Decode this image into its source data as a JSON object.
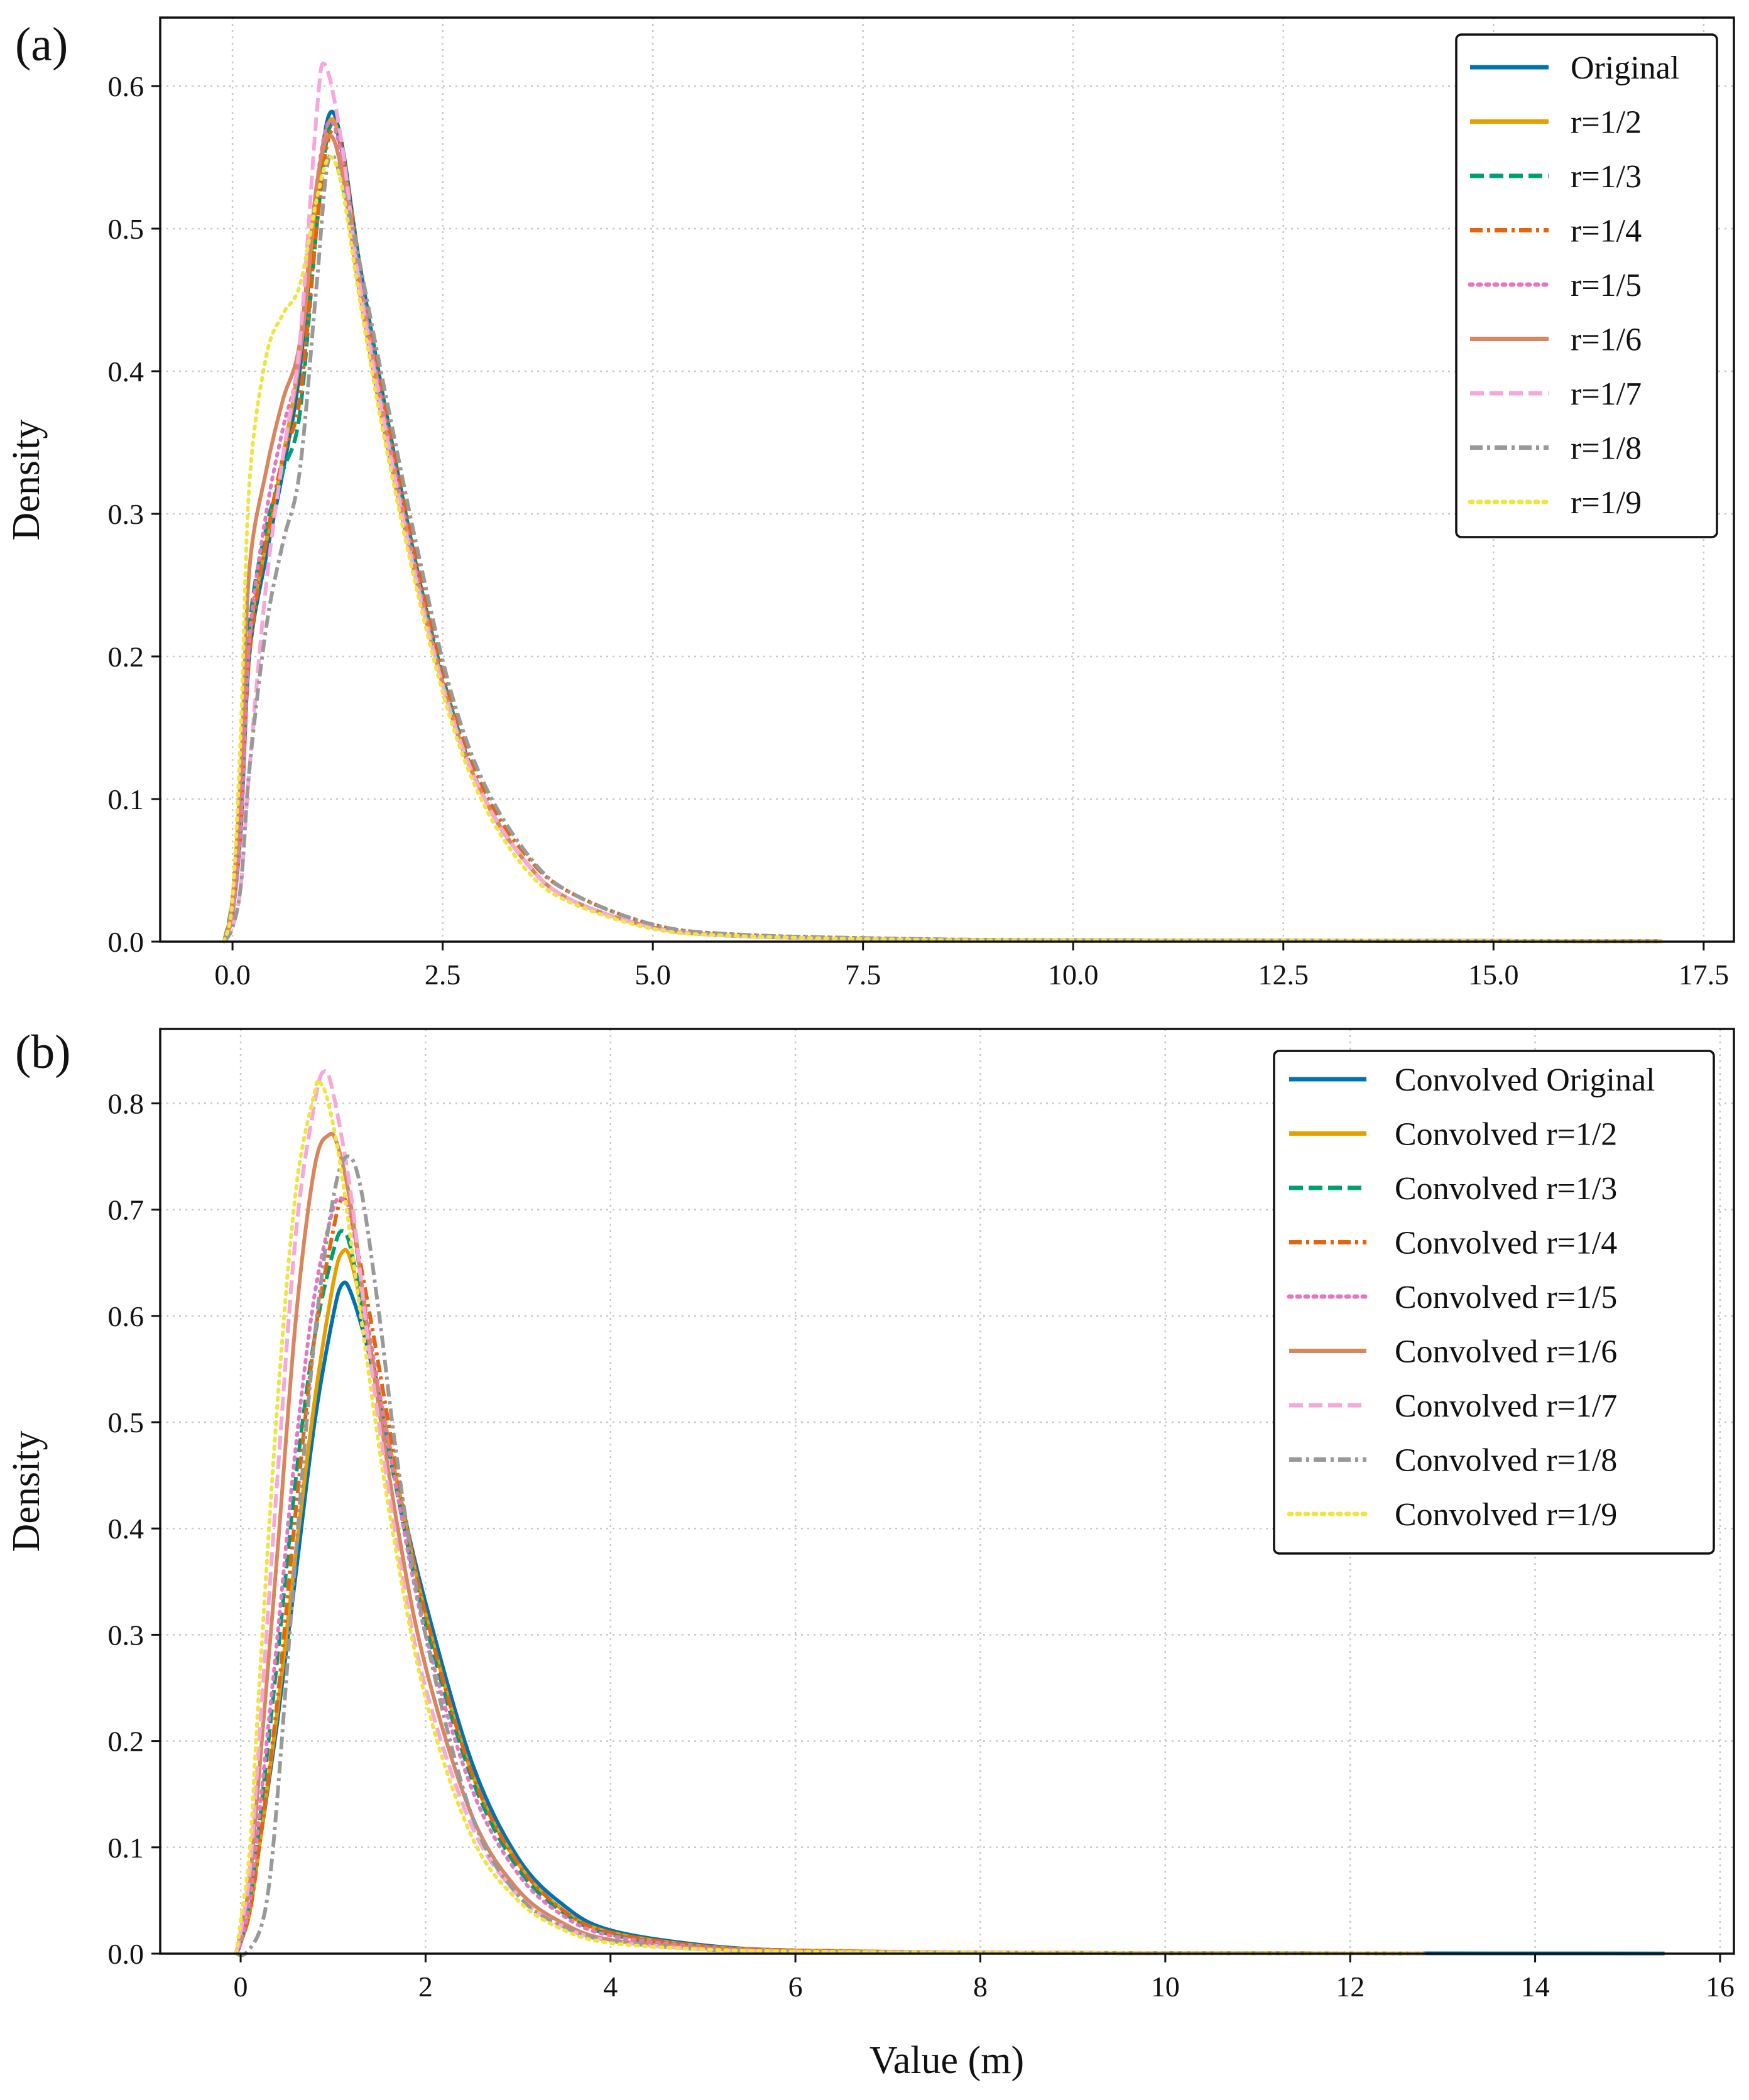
{
  "chart_data": [
    {
      "type": "line",
      "panel_label": "(a)",
      "xlabel": "",
      "ylabel": "Density",
      "xlim": [
        -0.86,
        17.86
      ],
      "ylim": [
        0,
        0.648
      ],
      "xticks": [
        0.0,
        2.5,
        5.0,
        7.5,
        10.0,
        12.5,
        15.0,
        17.5
      ],
      "xtick_labels": [
        "0.0",
        "2.5",
        "5.0",
        "7.5",
        "10.0",
        "12.5",
        "15.0",
        "17.5"
      ],
      "yticks": [
        0.0,
        0.1,
        0.2,
        0.3,
        0.4,
        0.5,
        0.6
      ],
      "ytick_labels": [
        "0.0",
        "0.1",
        "0.2",
        "0.3",
        "0.4",
        "0.5",
        "0.6"
      ],
      "grid": true,
      "legend_position": "top-right",
      "series": [
        {
          "name": "Original",
          "color": "#0072B2",
          "style": "solid",
          "x": [
            -0.1,
            0.0,
            0.1,
            0.2,
            0.4,
            0.6,
            0.8,
            1.0,
            1.15,
            1.3,
            1.5,
            1.8,
            2.2,
            2.6,
            3.0,
            3.5,
            4.0,
            5.0,
            6.0,
            8.0,
            10.0,
            15.0,
            17.0
          ],
          "y": [
            0.0,
            0.02,
            0.08,
            0.2,
            0.27,
            0.33,
            0.4,
            0.52,
            0.58,
            0.56,
            0.48,
            0.38,
            0.26,
            0.16,
            0.1,
            0.055,
            0.03,
            0.01,
            0.004,
            0.0015,
            0.001,
            0.0005,
            0.0003
          ]
        },
        {
          "name": "r=1/2",
          "color": "#E69F00",
          "style": "solid",
          "x": [
            -0.1,
            0.0,
            0.1,
            0.2,
            0.4,
            0.6,
            0.8,
            1.0,
            1.15,
            1.3,
            1.5,
            1.8,
            2.2,
            2.6,
            3.0,
            3.5,
            4.0,
            5.0,
            6.0,
            8.0,
            10.0,
            15.0,
            17.0
          ],
          "y": [
            0.0,
            0.02,
            0.09,
            0.21,
            0.28,
            0.34,
            0.41,
            0.52,
            0.575,
            0.555,
            0.47,
            0.37,
            0.255,
            0.16,
            0.1,
            0.055,
            0.03,
            0.01,
            0.004,
            0.0015,
            0.001,
            0.0005,
            0.0003
          ]
        },
        {
          "name": "r=1/3",
          "color": "#009E73",
          "style": "dashed",
          "x": [
            -0.1,
            0.0,
            0.1,
            0.2,
            0.4,
            0.6,
            0.8,
            1.0,
            1.15,
            1.3,
            1.5,
            1.8,
            2.2,
            2.6,
            3.0,
            3.5,
            4.0,
            5.0,
            6.0,
            8.0,
            10.0,
            15.0,
            17.0
          ],
          "y": [
            0.0,
            0.03,
            0.1,
            0.22,
            0.29,
            0.33,
            0.37,
            0.5,
            0.57,
            0.555,
            0.475,
            0.375,
            0.26,
            0.165,
            0.1,
            0.055,
            0.03,
            0.01,
            0.004,
            0.0015,
            0.001,
            0.0005,
            0.0003
          ]
        },
        {
          "name": "r=1/4",
          "color": "#E3650F",
          "style": "dashdot",
          "x": [
            -0.1,
            0.0,
            0.1,
            0.2,
            0.4,
            0.6,
            0.8,
            1.0,
            1.15,
            1.3,
            1.5,
            1.8,
            2.2,
            2.6,
            3.0,
            3.5,
            4.0,
            5.0,
            6.0,
            8.0,
            10.0,
            15.0,
            17.0
          ],
          "y": [
            0.0,
            0.02,
            0.08,
            0.2,
            0.28,
            0.34,
            0.38,
            0.5,
            0.565,
            0.555,
            0.48,
            0.38,
            0.265,
            0.17,
            0.105,
            0.06,
            0.035,
            0.012,
            0.005,
            0.002,
            0.001,
            0.0005,
            0.0003
          ]
        },
        {
          "name": "r=1/5",
          "color": "#E377C2",
          "style": "dotted",
          "x": [
            -0.1,
            0.0,
            0.1,
            0.2,
            0.4,
            0.6,
            0.8,
            1.0,
            1.15,
            1.3,
            1.5,
            1.8,
            2.2,
            2.6,
            3.0,
            3.5,
            4.0,
            5.0,
            6.0,
            8.0,
            10.0,
            15.0,
            17.0
          ],
          "y": [
            0.0,
            0.02,
            0.08,
            0.21,
            0.3,
            0.36,
            0.41,
            0.53,
            0.575,
            0.55,
            0.47,
            0.37,
            0.255,
            0.16,
            0.1,
            0.055,
            0.03,
            0.01,
            0.004,
            0.0015,
            0.001,
            0.0005,
            0.0003
          ]
        },
        {
          "name": "r=1/6",
          "color": "#D9865E",
          "style": "solid",
          "x": [
            -0.1,
            0.0,
            0.1,
            0.2,
            0.4,
            0.6,
            0.8,
            1.0,
            1.15,
            1.3,
            1.5,
            1.8,
            2.2,
            2.6,
            3.0,
            3.5,
            4.0,
            5.0,
            6.0,
            8.0,
            10.0,
            15.0,
            17.0
          ],
          "y": [
            0.0,
            0.03,
            0.12,
            0.26,
            0.33,
            0.38,
            0.42,
            0.53,
            0.565,
            0.54,
            0.46,
            0.36,
            0.25,
            0.16,
            0.1,
            0.055,
            0.03,
            0.01,
            0.004,
            0.0015,
            0.001,
            0.0005,
            0.0003
          ]
        },
        {
          "name": "r=1/7",
          "color": "#F7A8D8",
          "style": "dashed",
          "x": [
            -0.1,
            0.0,
            0.1,
            0.2,
            0.4,
            0.6,
            0.8,
            1.0,
            1.1,
            1.3,
            1.5,
            1.8,
            2.2,
            2.6,
            3.0,
            3.5,
            4.0,
            5.0,
            6.0,
            8.0,
            10.0,
            15.0,
            17.0
          ],
          "y": [
            0.0,
            0.01,
            0.04,
            0.12,
            0.25,
            0.34,
            0.42,
            0.58,
            0.615,
            0.56,
            0.465,
            0.365,
            0.25,
            0.16,
            0.1,
            0.055,
            0.03,
            0.01,
            0.004,
            0.0015,
            0.001,
            0.0005,
            0.0003
          ]
        },
        {
          "name": "r=1/8",
          "color": "#999999",
          "style": "dashdot",
          "x": [
            -0.1,
            0.0,
            0.1,
            0.2,
            0.4,
            0.6,
            0.8,
            1.0,
            1.15,
            1.35,
            1.5,
            1.8,
            2.2,
            2.6,
            3.0,
            3.5,
            4.0,
            5.0,
            6.0,
            8.0,
            10.0,
            15.0,
            17.0
          ],
          "y": [
            0.0,
            0.01,
            0.04,
            0.12,
            0.22,
            0.28,
            0.33,
            0.46,
            0.55,
            0.52,
            0.48,
            0.39,
            0.275,
            0.175,
            0.11,
            0.062,
            0.035,
            0.012,
            0.005,
            0.002,
            0.001,
            0.0005,
            0.0003
          ]
        },
        {
          "name": "r=1/9",
          "color": "#F0E442",
          "style": "dotted",
          "x": [
            -0.1,
            0.0,
            0.1,
            0.2,
            0.4,
            0.6,
            0.8,
            1.0,
            1.15,
            1.3,
            1.5,
            1.8,
            2.2,
            2.6,
            3.0,
            3.5,
            4.0,
            5.0,
            6.0,
            8.0,
            10.0,
            15.0,
            17.0
          ],
          "y": [
            0.0,
            0.03,
            0.15,
            0.32,
            0.41,
            0.44,
            0.46,
            0.52,
            0.55,
            0.53,
            0.455,
            0.355,
            0.245,
            0.155,
            0.095,
            0.05,
            0.028,
            0.009,
            0.004,
            0.0015,
            0.001,
            0.0005,
            0.0003
          ]
        }
      ]
    },
    {
      "type": "line",
      "panel_label": "(b)",
      "xlabel": "Value (m)",
      "ylabel": "Density",
      "xlim": [
        -0.87,
        16.15
      ],
      "ylim": [
        0,
        0.87
      ],
      "xticks": [
        0,
        2,
        4,
        6,
        8,
        10,
        12,
        14,
        16
      ],
      "xtick_labels": [
        "0",
        "2",
        "4",
        "6",
        "8",
        "10",
        "12",
        "14",
        "16"
      ],
      "yticks": [
        0.0,
        0.1,
        0.2,
        0.3,
        0.4,
        0.5,
        0.6,
        0.7,
        0.8
      ],
      "ytick_labels": [
        "0.0",
        "0.1",
        "0.2",
        "0.3",
        "0.4",
        "0.5",
        "0.6",
        "0.7",
        "0.8"
      ],
      "grid": true,
      "legend_position": "top-right",
      "series": [
        {
          "name": "Convolved Original",
          "color": "#0072B2",
          "style": "solid",
          "x": [
            -0.05,
            0.0,
            0.1,
            0.2,
            0.4,
            0.6,
            0.8,
            1.0,
            1.1,
            1.2,
            1.4,
            1.7,
            2.0,
            2.5,
            3.0,
            3.5,
            4.0,
            5.0,
            6.0,
            8.0,
            10.0,
            12.0,
            15.4
          ],
          "y": [
            0.0,
            0.01,
            0.04,
            0.1,
            0.22,
            0.36,
            0.5,
            0.6,
            0.63,
            0.62,
            0.56,
            0.44,
            0.33,
            0.18,
            0.09,
            0.045,
            0.022,
            0.008,
            0.003,
            0.001,
            0.0005,
            0.0003,
            0.0002
          ]
        },
        {
          "name": "Convolved r=1/2",
          "color": "#E69F00",
          "style": "solid",
          "x": [
            -0.05,
            0.0,
            0.1,
            0.2,
            0.4,
            0.6,
            0.8,
            1.0,
            1.1,
            1.2,
            1.4,
            1.7,
            2.0,
            2.5,
            3.0,
            3.5,
            4.0,
            5.0,
            6.0,
            8.0,
            10.0,
            12.0,
            12.8
          ],
          "y": [
            0.0,
            0.01,
            0.04,
            0.1,
            0.23,
            0.38,
            0.52,
            0.63,
            0.66,
            0.65,
            0.57,
            0.44,
            0.32,
            0.17,
            0.085,
            0.04,
            0.02,
            0.007,
            0.003,
            0.001,
            0.0005,
            0.0003,
            0.0002
          ]
        },
        {
          "name": "Convolved r=1/3",
          "color": "#009E73",
          "style": "dashed",
          "x": [
            -0.05,
            0.0,
            0.1,
            0.2,
            0.4,
            0.6,
            0.8,
            1.0,
            1.1,
            1.2,
            1.4,
            1.7,
            2.0,
            2.5,
            3.0,
            3.5,
            4.0,
            5.0,
            6.0,
            8.0,
            10.0,
            12.0,
            12.8
          ],
          "y": [
            0.0,
            0.01,
            0.05,
            0.12,
            0.28,
            0.45,
            0.58,
            0.66,
            0.68,
            0.66,
            0.57,
            0.43,
            0.31,
            0.165,
            0.08,
            0.038,
            0.018,
            0.006,
            0.002,
            0.001,
            0.0005,
            0.0003,
            0.0002
          ]
        },
        {
          "name": "Convolved r=1/4",
          "color": "#E3650F",
          "style": "dashdot",
          "x": [
            -0.05,
            0.0,
            0.1,
            0.2,
            0.4,
            0.6,
            0.8,
            1.0,
            1.1,
            1.2,
            1.4,
            1.7,
            2.0,
            2.5,
            3.0,
            3.5,
            4.0,
            5.0,
            6.0,
            8.0,
            10.0,
            12.0,
            12.8
          ],
          "y": [
            0.0,
            0.01,
            0.04,
            0.1,
            0.24,
            0.42,
            0.58,
            0.68,
            0.71,
            0.69,
            0.6,
            0.45,
            0.32,
            0.17,
            0.085,
            0.04,
            0.02,
            0.007,
            0.003,
            0.001,
            0.0005,
            0.0003,
            0.0002
          ]
        },
        {
          "name": "Convolved r=1/5",
          "color": "#E377C2",
          "style": "dotted",
          "x": [
            -0.05,
            0.0,
            0.1,
            0.2,
            0.4,
            0.6,
            0.8,
            1.0,
            1.1,
            1.2,
            1.4,
            1.7,
            2.0,
            2.5,
            3.0,
            3.5,
            4.0,
            5.0,
            6.0,
            8.0,
            10.0,
            12.0,
            12.8
          ],
          "y": [
            0.0,
            0.01,
            0.05,
            0.13,
            0.3,
            0.48,
            0.62,
            0.7,
            0.71,
            0.69,
            0.58,
            0.43,
            0.3,
            0.155,
            0.075,
            0.035,
            0.017,
            0.006,
            0.002,
            0.001,
            0.0005,
            0.0003,
            0.0002
          ]
        },
        {
          "name": "Convolved r=1/6",
          "color": "#D9865E",
          "style": "solid",
          "x": [
            -0.05,
            0.0,
            0.1,
            0.2,
            0.4,
            0.6,
            0.8,
            0.95,
            1.05,
            1.2,
            1.4,
            1.7,
            2.0,
            2.5,
            3.0,
            3.5,
            4.0,
            5.0,
            6.0,
            8.0,
            10.0,
            12.0,
            12.8
          ],
          "y": [
            0.0,
            0.02,
            0.07,
            0.17,
            0.38,
            0.6,
            0.74,
            0.77,
            0.76,
            0.7,
            0.57,
            0.4,
            0.27,
            0.13,
            0.06,
            0.028,
            0.013,
            0.005,
            0.002,
            0.001,
            0.0005,
            0.0003,
            0.0002
          ]
        },
        {
          "name": "Convolved r=1/7",
          "color": "#F7A8D8",
          "style": "dashed",
          "x": [
            -0.05,
            0.0,
            0.1,
            0.2,
            0.4,
            0.6,
            0.8,
            0.9,
            1.0,
            1.2,
            1.4,
            1.7,
            2.0,
            2.5,
            3.0,
            3.5,
            4.0,
            5.0,
            6.0,
            8.0,
            10.0,
            12.0,
            12.8
          ],
          "y": [
            0.0,
            0.02,
            0.08,
            0.2,
            0.45,
            0.68,
            0.8,
            0.83,
            0.81,
            0.71,
            0.56,
            0.38,
            0.25,
            0.12,
            0.055,
            0.025,
            0.012,
            0.004,
            0.002,
            0.001,
            0.0005,
            0.0003,
            0.0002
          ]
        },
        {
          "name": "Convolved r=1/8",
          "color": "#999999",
          "style": "dashdot",
          "x": [
            -0.05,
            0.05,
            0.2,
            0.3,
            0.4,
            0.6,
            0.8,
            1.0,
            1.15,
            1.3,
            1.5,
            1.7,
            2.0,
            2.5,
            3.0,
            3.5,
            4.0,
            5.0,
            6.0,
            8.0,
            10.0,
            12.0,
            12.8
          ],
          "y": [
            0.0,
            0.0,
            0.02,
            0.06,
            0.15,
            0.38,
            0.58,
            0.71,
            0.75,
            0.72,
            0.6,
            0.46,
            0.3,
            0.13,
            0.055,
            0.025,
            0.012,
            0.004,
            0.002,
            0.001,
            0.0005,
            0.0003,
            0.0002
          ]
        },
        {
          "name": "Convolved r=1/9",
          "color": "#F0E442",
          "style": "dotted",
          "x": [
            -0.05,
            0.0,
            0.1,
            0.2,
            0.4,
            0.6,
            0.8,
            0.85,
            0.95,
            1.1,
            1.3,
            1.6,
            2.0,
            2.5,
            3.0,
            3.5,
            4.0,
            5.0,
            6.0,
            8.0,
            10.0,
            12.0,
            12.8
          ],
          "y": [
            0.0,
            0.03,
            0.1,
            0.25,
            0.52,
            0.72,
            0.81,
            0.82,
            0.8,
            0.73,
            0.6,
            0.42,
            0.24,
            0.11,
            0.05,
            0.022,
            0.01,
            0.004,
            0.002,
            0.001,
            0.0005,
            0.0003,
            0.0002
          ]
        }
      ]
    }
  ]
}
